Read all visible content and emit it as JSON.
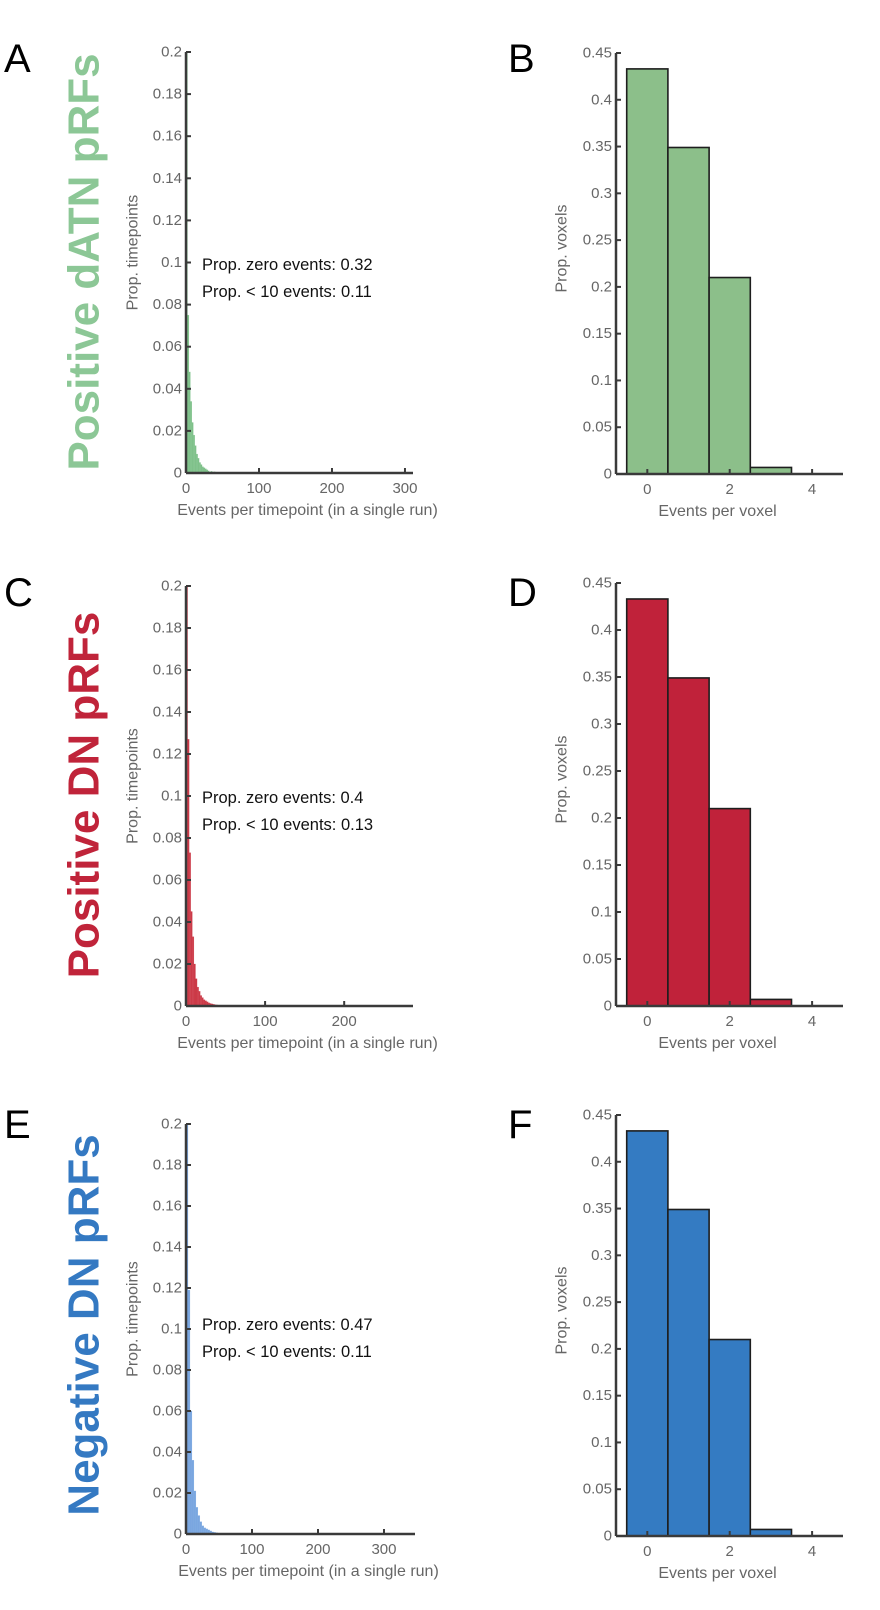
{
  "figure": {
    "rows": [
      {
        "title": "Positive dATN pRFs",
        "title_color": "#8cc796"
      },
      {
        "title": "Positive DN pRFs",
        "title_color": "#c0243a"
      },
      {
        "title": "Negative DN pRFs",
        "title_color": "#3479c2"
      }
    ]
  },
  "chart_data": [
    {
      "panel": "A",
      "type": "bar",
      "subtype": "histogram",
      "color": "#7fc18a",
      "title": "",
      "xlabel": "Events per timepoint (in a single run)",
      "ylabel": "Prop. timepoints",
      "xlim": [
        0,
        311
      ],
      "ylim": [
        0,
        0.2
      ],
      "xticks": [
        0,
        100,
        200,
        300
      ],
      "xtick_labels": [
        "0",
        "100",
        "200",
        "300"
      ],
      "yticks": [
        0,
        0.02,
        0.04,
        0.06,
        0.08,
        0.1,
        0.12,
        0.14,
        0.16,
        0.18,
        0.2
      ],
      "ytick_labels": [
        "0",
        "0.02",
        "0.04",
        "0.06",
        "0.08",
        "0.1",
        "0.12",
        "0.14",
        "0.16",
        "0.18",
        "0.2"
      ],
      "bin_width": 2,
      "bin_starts": [
        0,
        2,
        4,
        6,
        8,
        10,
        12,
        14,
        16,
        18,
        20,
        22,
        24,
        26,
        28,
        30,
        34,
        38,
        42,
        46,
        50
      ],
      "values": [
        0.32,
        0.075,
        0.048,
        0.034,
        0.024,
        0.018,
        0.013,
        0.009,
        0.007,
        0.005,
        0.004,
        0.003,
        0.0025,
        0.002,
        0.0015,
        0.001,
        0.0008,
        0.0006,
        0.0004,
        0.0003,
        0.0002
      ],
      "annotations": [
        "Prop. zero events: 0.32",
        "Prop. < 10 events: 0.11"
      ]
    },
    {
      "panel": "B",
      "type": "bar",
      "subtype": "histogram",
      "color": "#8cbf8a",
      "title": "",
      "xlabel": "Events per voxel",
      "ylabel": "Prop. voxels",
      "xlim": [
        -0.76,
        4.75
      ],
      "ylim": [
        0,
        0.45
      ],
      "xticks": [
        0,
        2,
        4
      ],
      "xtick_labels": [
        "0",
        "2",
        "4"
      ],
      "yticks": [
        0,
        0.05,
        0.1,
        0.15,
        0.2,
        0.25,
        0.3,
        0.35,
        0.4,
        0.45
      ],
      "ytick_labels": [
        "0",
        "0.05",
        "0.1",
        "0.15",
        "0.2",
        "0.25",
        "0.3",
        "0.35",
        "0.4",
        "0.45"
      ],
      "categories": [
        0,
        1,
        2,
        3
      ],
      "values": [
        0.433,
        0.349,
        0.21,
        0.007
      ]
    },
    {
      "panel": "C",
      "type": "bar",
      "subtype": "histogram",
      "color": "#cc3a48",
      "title": "",
      "xlabel": "Events per timepoint (in a single run)",
      "ylabel": "Prop. timepoints",
      "xlim": [
        0,
        287
      ],
      "ylim": [
        0,
        0.2
      ],
      "xticks": [
        0,
        100,
        200
      ],
      "xtick_labels": [
        "0",
        "100",
        "200"
      ],
      "yticks": [
        0,
        0.02,
        0.04,
        0.06,
        0.08,
        0.1,
        0.12,
        0.14,
        0.16,
        0.18,
        0.2
      ],
      "ytick_labels": [
        "0",
        "0.02",
        "0.04",
        "0.06",
        "0.08",
        "0.1",
        "0.12",
        "0.14",
        "0.16",
        "0.18",
        "0.2"
      ],
      "bin_width": 2,
      "bin_starts": [
        0,
        2,
        4,
        6,
        8,
        10,
        12,
        14,
        16,
        18,
        20,
        22,
        24,
        26,
        28,
        30,
        32,
        34,
        36,
        38,
        40,
        42,
        44
      ],
      "values": [
        0.4,
        0.127,
        0.073,
        0.045,
        0.033,
        0.02,
        0.013,
        0.009,
        0.007,
        0.005,
        0.004,
        0.003,
        0.0025,
        0.002,
        0.0015,
        0.0012,
        0.001,
        0.0008,
        0.0006,
        0.0005,
        0.0004,
        0.0003,
        0.0002
      ],
      "annotations": [
        "Prop. zero events: 0.4",
        "Prop. < 10 events: 0.13"
      ]
    },
    {
      "panel": "D",
      "type": "bar",
      "subtype": "histogram",
      "color": "#c0223a",
      "title": "",
      "xlabel": "Events per voxel",
      "ylabel": "Prop. voxels",
      "xlim": [
        -0.76,
        4.75
      ],
      "ylim": [
        0,
        0.45
      ],
      "xticks": [
        0,
        2,
        4
      ],
      "xtick_labels": [
        "0",
        "2",
        "4"
      ],
      "yticks": [
        0,
        0.05,
        0.1,
        0.15,
        0.2,
        0.25,
        0.3,
        0.35,
        0.4,
        0.45
      ],
      "ytick_labels": [
        "0",
        "0.05",
        "0.1",
        "0.15",
        "0.2",
        "0.25",
        "0.3",
        "0.35",
        "0.4",
        "0.45"
      ],
      "categories": [
        0,
        1,
        2,
        3
      ],
      "values": [
        0.433,
        0.349,
        0.21,
        0.007
      ]
    },
    {
      "panel": "E",
      "type": "bar",
      "subtype": "histogram",
      "color": "#7aa7e0",
      "title": "",
      "xlabel": "Events per timepoint (in a single run)",
      "ylabel": "Prop. timepoints",
      "xlim": [
        0,
        347
      ],
      "ylim": [
        0,
        0.2
      ],
      "xticks": [
        0,
        100,
        200,
        300
      ],
      "xtick_labels": [
        "0",
        "100",
        "200",
        "300"
      ],
      "yticks": [
        0,
        0.02,
        0.04,
        0.06,
        0.08,
        0.1,
        0.12,
        0.14,
        0.16,
        0.18,
        0.2
      ],
      "ytick_labels": [
        "0",
        "0.02",
        "0.04",
        "0.06",
        "0.08",
        "0.1",
        "0.12",
        "0.14",
        "0.16",
        "0.18",
        "0.2"
      ],
      "bin_width": 3,
      "bin_starts": [
        0,
        3,
        6,
        9,
        12,
        15,
        18,
        21,
        24,
        27,
        30,
        33,
        36,
        39,
        42,
        45,
        48,
        51
      ],
      "values": [
        0.47,
        0.119,
        0.06,
        0.036,
        0.021,
        0.013,
        0.009,
        0.006,
        0.004,
        0.003,
        0.0025,
        0.002,
        0.0015,
        0.001,
        0.0008,
        0.0006,
        0.0004,
        0.0003
      ],
      "annotations": [
        "Prop. zero events: 0.47",
        "Prop. < 10 events: 0.11"
      ]
    },
    {
      "panel": "F",
      "type": "bar",
      "subtype": "histogram",
      "color": "#347bc2",
      "title": "",
      "xlabel": "Events per voxel",
      "ylabel": "Prop. voxels",
      "xlim": [
        -0.76,
        4.75
      ],
      "ylim": [
        0,
        0.45
      ],
      "xticks": [
        0,
        2,
        4
      ],
      "xtick_labels": [
        "0",
        "2",
        "4"
      ],
      "yticks": [
        0,
        0.05,
        0.1,
        0.15,
        0.2,
        0.25,
        0.3,
        0.35,
        0.4,
        0.45
      ],
      "ytick_labels": [
        "0",
        "0.05",
        "0.1",
        "0.15",
        "0.2",
        "0.25",
        "0.3",
        "0.35",
        "0.4",
        "0.45"
      ],
      "categories": [
        0,
        1,
        2,
        3
      ],
      "values": [
        0.433,
        0.349,
        0.21,
        0.007
      ]
    }
  ]
}
